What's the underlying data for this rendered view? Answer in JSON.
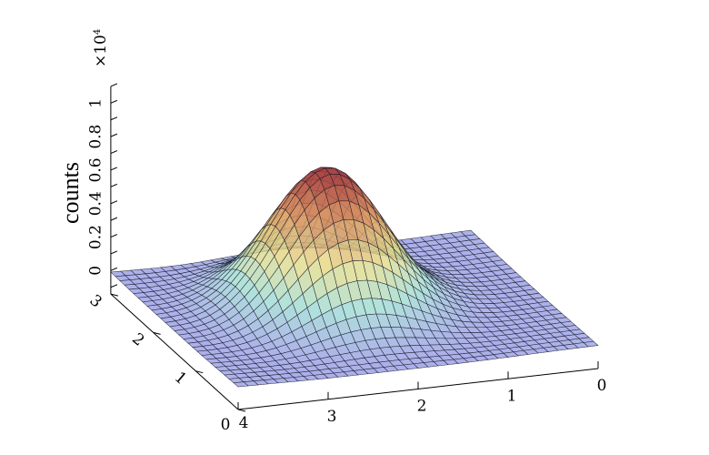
{
  "chart_data": {
    "type": "surface",
    "title": "",
    "xlabel": "",
    "ylabel": "",
    "zlabel": "counts",
    "z_exponent_label": "×10",
    "z_exponent_power": "4",
    "xlim": [
      0,
      4
    ],
    "ylim": [
      0,
      3
    ],
    "zlim": [
      -1400,
      11000
    ],
    "x_ticks": [
      "0",
      "1",
      "2",
      "3",
      "4"
    ],
    "y_ticks": [
      "0",
      "1",
      "2",
      "3"
    ],
    "z_ticks": [
      "0",
      "0.2",
      "0.4",
      "0.6",
      "0.8",
      "1"
    ],
    "z_tick_values": [
      0,
      2000,
      4000,
      6000,
      8000,
      10000
    ],
    "surface": {
      "model": "gaussian",
      "amplitude": 8000,
      "center": [
        2.2,
        1.7
      ],
      "sigma": [
        0.6,
        0.55
      ],
      "ring_depth": -500,
      "grid_x": 36,
      "grid_y": 28
    },
    "colormap": [
      "#9a9ae6",
      "#9fdcd4",
      "#e6dc86",
      "#d98c5e",
      "#a33e3e"
    ],
    "grid": false
  }
}
